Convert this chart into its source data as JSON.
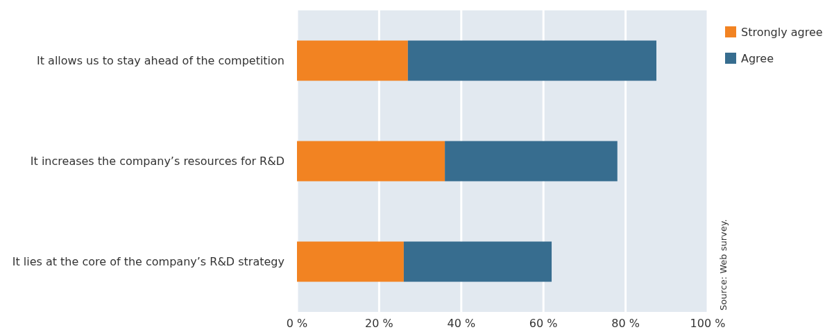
{
  "chart_data": {
    "type": "bar",
    "orientation": "horizontal",
    "stacked": true,
    "categories": [
      "It allows us to stay ahead of the competition",
      "It increases the company’s resources for R&D",
      "It lies at the core of the company’s R&D strategy"
    ],
    "series": [
      {
        "name": "Strongly agree",
        "color": "#f28322",
        "values": [
          27,
          36,
          26
        ]
      },
      {
        "name": "Agree",
        "color": "#376d8f",
        "values": [
          60.5,
          42,
          36
        ]
      }
    ],
    "xlim": [
      0,
      100
    ],
    "xticks": [
      {
        "value": 0,
        "label": "0 %"
      },
      {
        "value": 20,
        "label": "20 %"
      },
      {
        "value": 40,
        "label": "40 %"
      },
      {
        "value": 60,
        "label": "60 %"
      },
      {
        "value": 80,
        "label": "80 %"
      },
      {
        "value": 100,
        "label": "100 %"
      }
    ],
    "grid": "x",
    "legend": "top right",
    "annotations": [
      "Source: Web survey."
    ]
  }
}
